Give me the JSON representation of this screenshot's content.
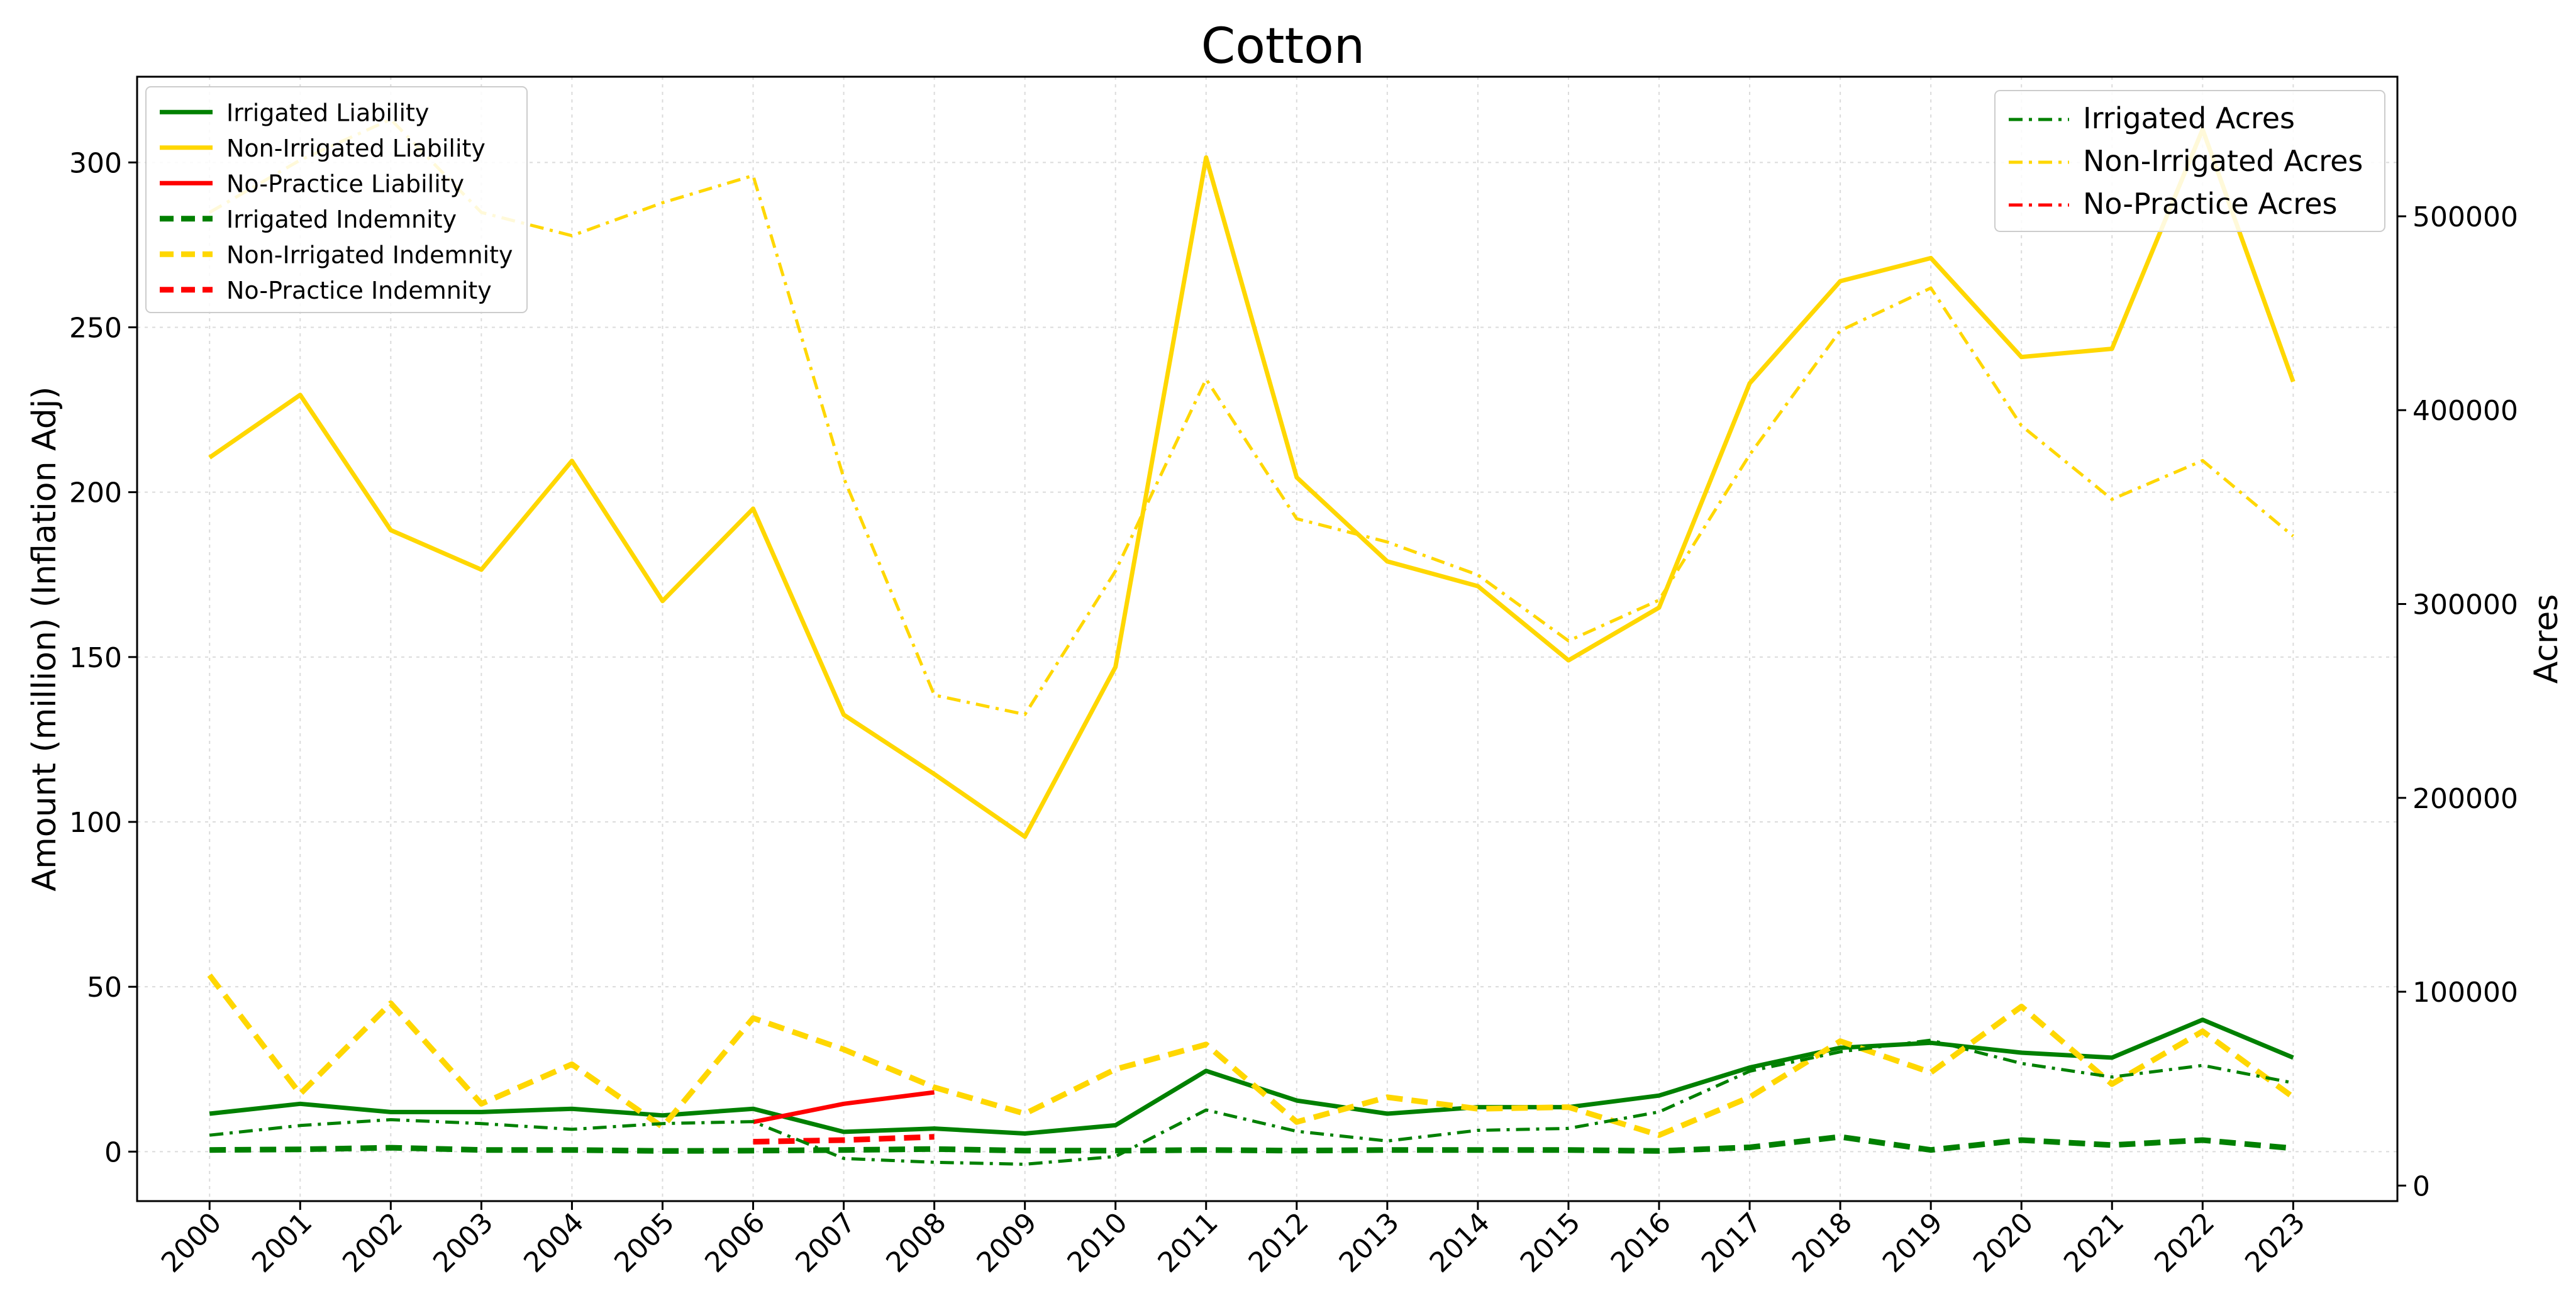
{
  "chart_data": {
    "type": "line",
    "title": "Cotton",
    "ylabel": "Amount (million) (Inflation Adj)",
    "y2label": "Acres",
    "x": [
      2000,
      2001,
      2002,
      2003,
      2004,
      2005,
      2006,
      2007,
      2008,
      2009,
      2010,
      2011,
      2012,
      2013,
      2014,
      2015,
      2016,
      2017,
      2018,
      2019,
      2020,
      2021,
      2022,
      2023
    ],
    "x_tick_labels": [
      "2000",
      "2001",
      "2002",
      "2003",
      "2004",
      "2005",
      "2006",
      "2007",
      "2008",
      "2009",
      "2010",
      "2011",
      "2012",
      "2013",
      "2014",
      "2015",
      "2016",
      "2017",
      "2018",
      "2019",
      "2020",
      "2021",
      "2022",
      "2023"
    ],
    "ylim": [
      -15,
      326
    ],
    "y_ticks": [
      0,
      50,
      100,
      150,
      200,
      250,
      300
    ],
    "y_tick_labels": [
      "0",
      "50",
      "100",
      "150",
      "200",
      "250",
      "300"
    ],
    "y2lim": [
      -8000,
      572000
    ],
    "y2_ticks": [
      0,
      100000,
      200000,
      300000,
      400000,
      500000
    ],
    "y2_tick_labels": [
      "0",
      "100000",
      "200000",
      "300000",
      "400000",
      "500000"
    ],
    "grid": true,
    "legend_left_placement": "top-left",
    "legend_right_placement": "top-right",
    "series": [
      {
        "name": "Irrigated Liability",
        "axis": "left",
        "style": "solid",
        "color": "#008000",
        "values": [
          11.5,
          14.5,
          12,
          12,
          13,
          11,
          13,
          6,
          7,
          5.5,
          8,
          24.5,
          15.5,
          11.5,
          13.5,
          13.5,
          17,
          25.5,
          31.5,
          33,
          30,
          28.5,
          40,
          28.5
        ]
      },
      {
        "name": "Non-Irrigated Liability",
        "axis": "left",
        "style": "solid",
        "color": "#FFD700",
        "values": [
          210.5,
          229.5,
          188.5,
          176.5,
          209.5,
          167,
          195,
          132.5,
          114.5,
          95.5,
          147,
          301.5,
          204.5,
          179,
          171.5,
          149,
          165,
          233,
          264,
          271,
          241,
          243.5,
          310,
          233.5
        ]
      },
      {
        "name": "No-Practice Liability",
        "axis": "left",
        "style": "solid",
        "color": "#FF0000",
        "values": [
          null,
          null,
          null,
          null,
          null,
          null,
          9,
          14.5,
          18,
          null,
          null,
          null,
          null,
          null,
          null,
          null,
          null,
          null,
          null,
          null,
          null,
          null,
          null,
          null
        ]
      },
      {
        "name": "Irrigated Indemnity",
        "axis": "left",
        "style": "dashed",
        "color": "#008000",
        "values": [
          0.5,
          0.7,
          1.2,
          0.5,
          0.5,
          0.2,
          0.3,
          0.5,
          0.8,
          0.3,
          0.3,
          0.5,
          0.3,
          0.5,
          0.5,
          0.5,
          0.2,
          1.3,
          4.5,
          0.5,
          3.5,
          2,
          3.5,
          1
        ]
      },
      {
        "name": "Non-Irrigated Indemnity",
        "axis": "left",
        "style": "dashed",
        "color": "#FFD700",
        "values": [
          53.5,
          17.5,
          45,
          14.5,
          26.5,
          7.5,
          40.5,
          31,
          19.5,
          11.5,
          25,
          32.5,
          9,
          16.5,
          13,
          13.5,
          5,
          16.5,
          33.5,
          24,
          44,
          20.5,
          36.5,
          16.5
        ]
      },
      {
        "name": "No-Practice Indemnity",
        "axis": "left",
        "style": "dashed",
        "color": "#FF0000",
        "values": [
          null,
          null,
          null,
          null,
          null,
          null,
          3,
          3.5,
          4.5,
          null,
          null,
          null,
          null,
          null,
          null,
          null,
          null,
          null,
          null,
          null,
          null,
          null,
          null,
          null
        ]
      },
      {
        "name": "Irrigated Acres",
        "axis": "right",
        "style": "dashdot",
        "color": "#008000",
        "values": [
          26000,
          31000,
          34000,
          32000,
          29000,
          32000,
          33000,
          14000,
          12000,
          11000,
          15000,
          39000,
          28000,
          23000,
          28500,
          29500,
          38000,
          59000,
          69000,
          75000,
          63000,
          56000,
          62000,
          53000
        ]
      },
      {
        "name": "Non-Irrigated Acres",
        "axis": "right",
        "style": "dashdot",
        "color": "#FFD700",
        "values": [
          502000,
          529000,
          550000,
          502000,
          490000,
          507000,
          521000,
          365000,
          253000,
          243000,
          317000,
          416000,
          344000,
          332000,
          315000,
          281000,
          302000,
          377000,
          441000,
          463000,
          392000,
          354000,
          374000,
          335000
        ]
      },
      {
        "name": "No-Practice Acres",
        "axis": "right",
        "style": "dashdot",
        "color": "#FF0000",
        "values": [
          null,
          null,
          null,
          null,
          null,
          null,
          null,
          null,
          null,
          null,
          null,
          null,
          null,
          null,
          null,
          null,
          null,
          null,
          null,
          null,
          null,
          null,
          null,
          null
        ]
      }
    ]
  }
}
